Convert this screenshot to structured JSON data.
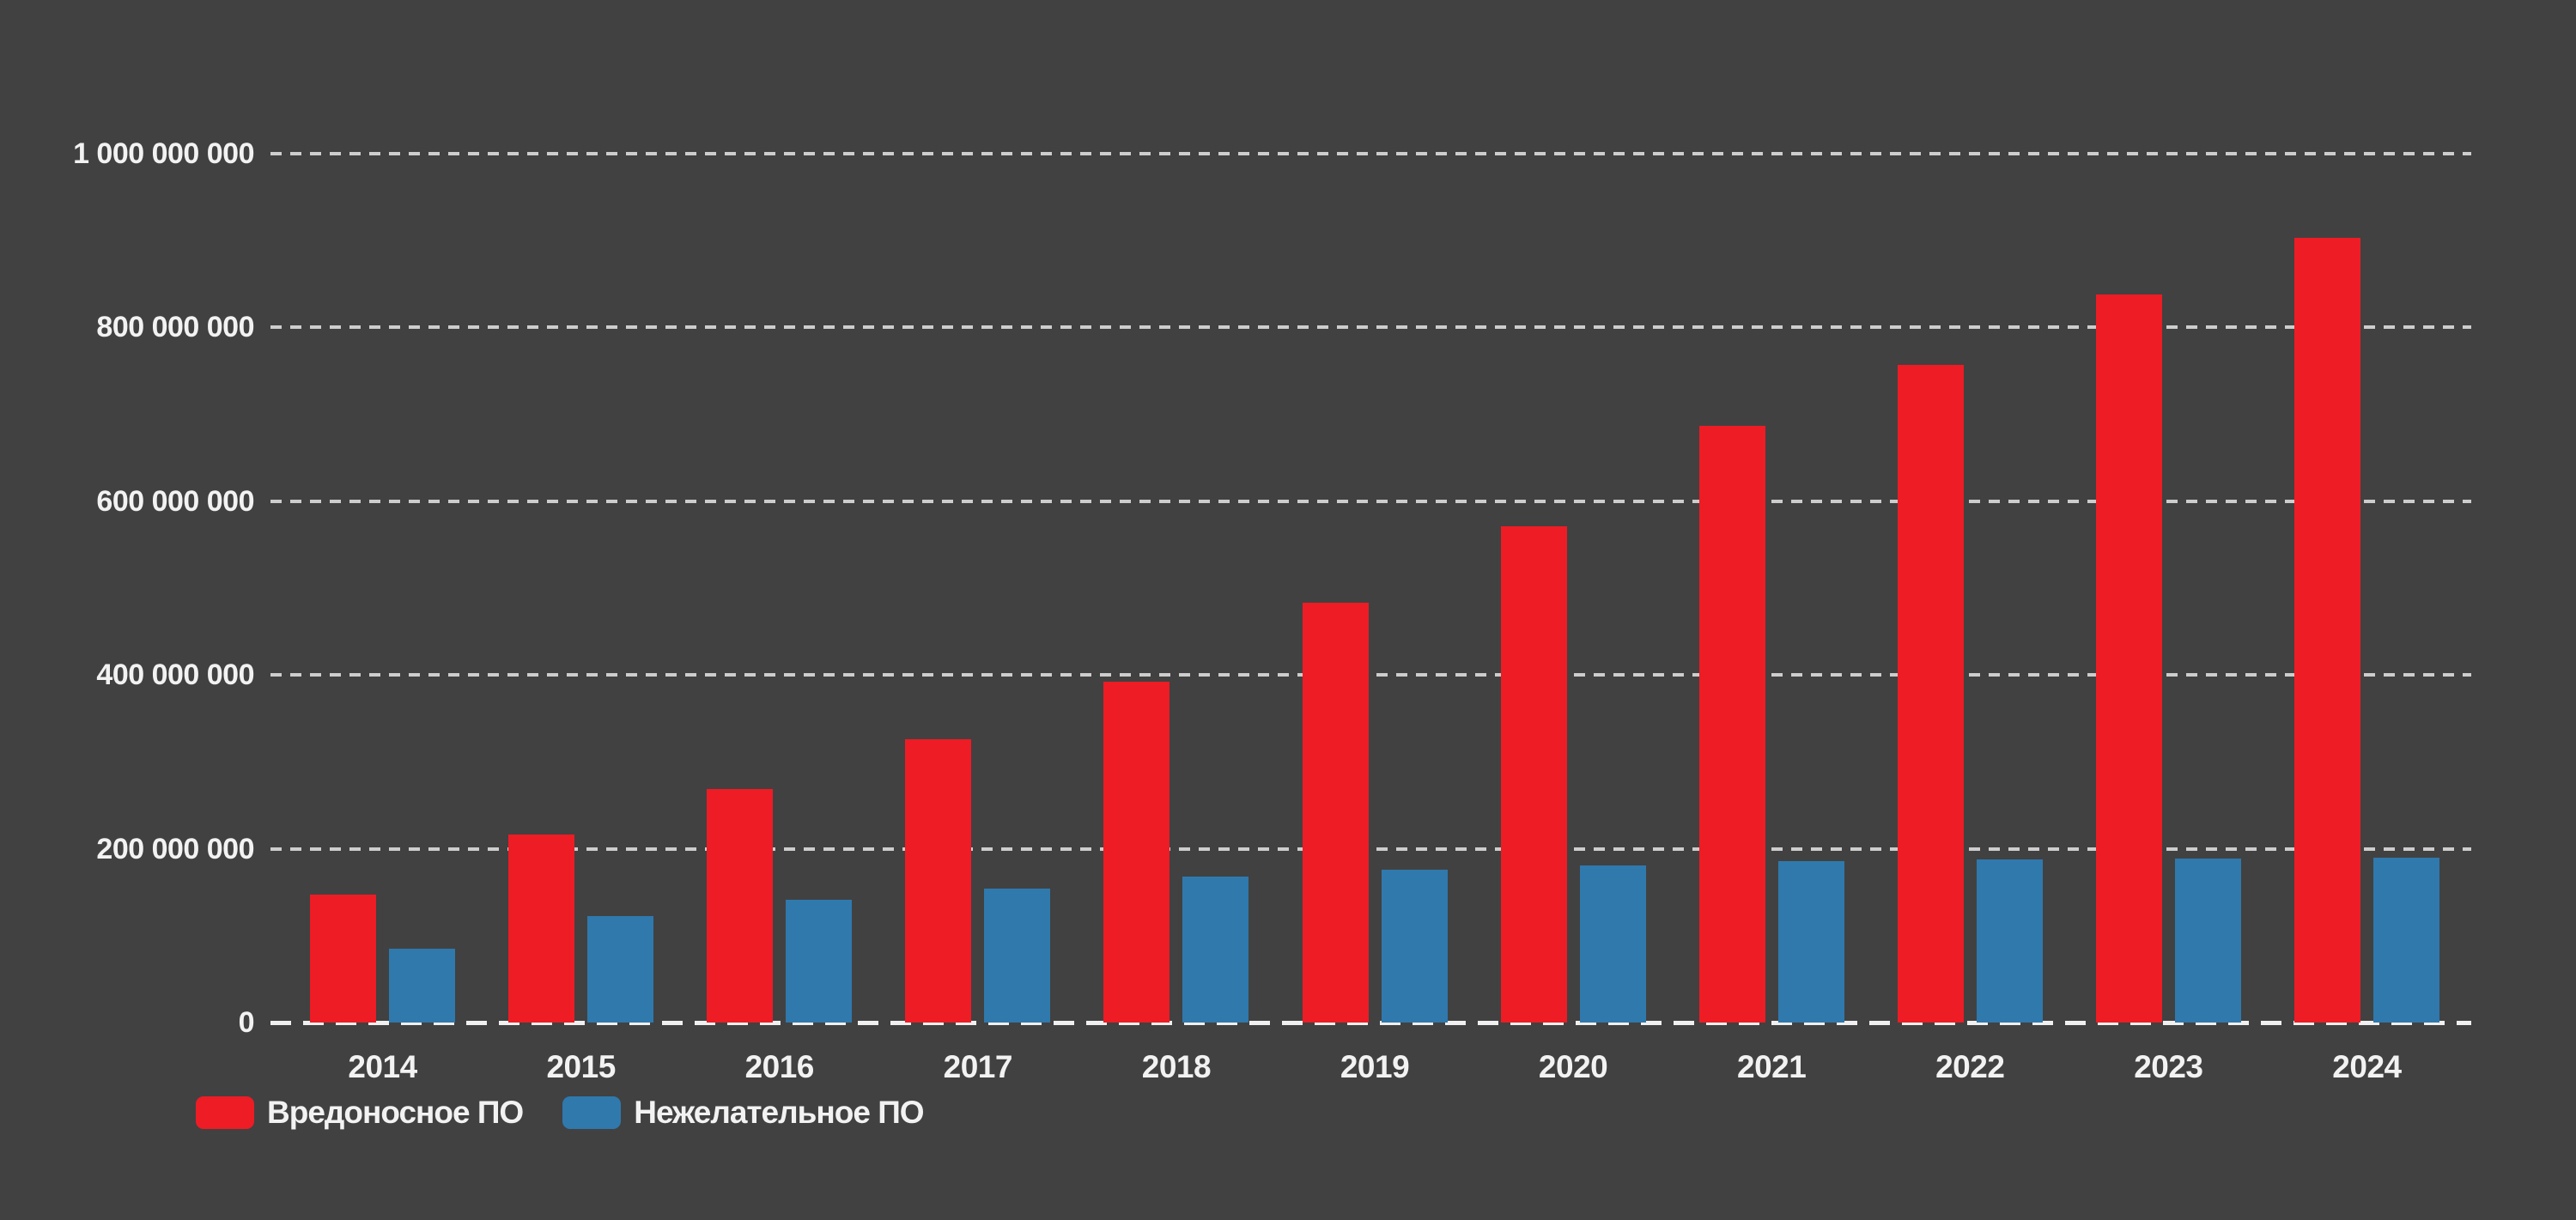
{
  "chart_data": {
    "type": "bar",
    "title": "",
    "xlabel": "",
    "ylabel": "",
    "categories": [
      "2014",
      "2015",
      "2016",
      "2017",
      "2018",
      "2019",
      "2020",
      "2021",
      "2022",
      "2023",
      "2024"
    ],
    "series": [
      {
        "name": "Вредоносное ПО",
        "color": "#ee1c25",
        "values": [
          147000000,
          216000000,
          269000000,
          326000000,
          392000000,
          483000000,
          571000000,
          687000000,
          757000000,
          838000000,
          903000000
        ]
      },
      {
        "name": "Нежелательное ПО",
        "color": "#2f79ad",
        "values": [
          85000000,
          123000000,
          141000000,
          154000000,
          168000000,
          176000000,
          181000000,
          186000000,
          188000000,
          189000000,
          190000000
        ]
      }
    ],
    "ylim": [
      0,
      1000000000
    ],
    "yticks": [
      {
        "value": 0,
        "label": "0"
      },
      {
        "value": 200000000,
        "label": "200 000 000"
      },
      {
        "value": 400000000,
        "label": "400 000 000"
      },
      {
        "value": 600000000,
        "label": "600 000 000"
      },
      {
        "value": 800000000,
        "label": "800 000 000"
      },
      {
        "value": 1000000000,
        "label": "1 000 000 000"
      }
    ],
    "grid": "horizontal dashed lines, brighter dashed zero baseline",
    "legend_position": "bottom-left",
    "background_color": "#414141",
    "text_color": "#f2f2f2",
    "gridline_color": "#cdcdcd"
  },
  "legend": {
    "items": [
      {
        "label": "Вредоносное ПО"
      },
      {
        "label": "Нежелательное ПО"
      }
    ]
  }
}
